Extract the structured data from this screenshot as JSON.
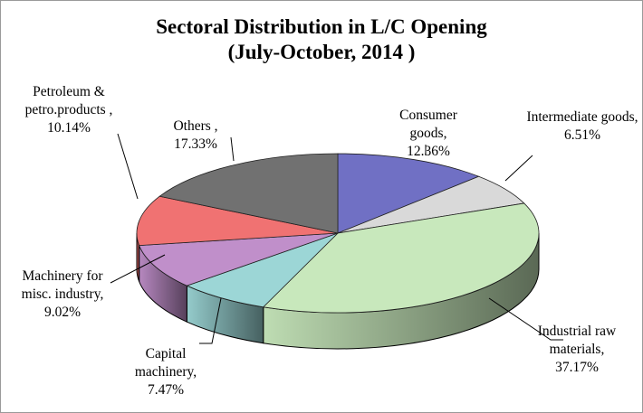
{
  "chart_data": {
    "type": "pie3d",
    "title": "Sectoral Distribution in L/C Opening",
    "subtitle": "(July-October, 2014 )",
    "categories": [
      "Consumer goods,",
      "Intermediate goods,",
      "Industrial raw materials,",
      "Capital machinery,",
      "Machinery for misc. industry,",
      "Petroleum & petro.products ,",
      "Others ,"
    ],
    "values": [
      12.36,
      6.51,
      37.17,
      7.47,
      9.02,
      10.14,
      17.33
    ],
    "value_labels": [
      "12.36%",
      "6.51%",
      "37.17%",
      "7.47%",
      "9.02%",
      "10.14%",
      "17.33%"
    ],
    "colors": [
      "#7070c4",
      "#d9d9d9",
      "#c8e8bc",
      "#9cd6d6",
      "#c08fca",
      "#f07272",
      "#717171"
    ]
  }
}
